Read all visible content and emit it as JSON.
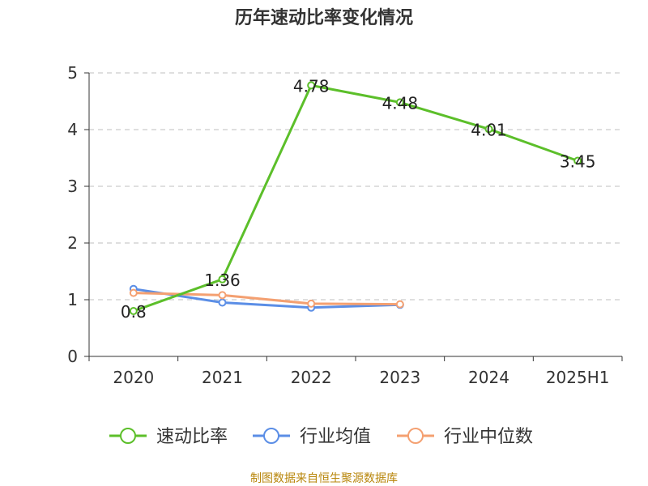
{
  "title": "历年速动比率变化情况",
  "source": "制图数据来自恒生聚源数据库",
  "chart_data": {
    "type": "line",
    "title": "历年速动比率变化情况",
    "categories": [
      "2020",
      "2021",
      "2022",
      "2023",
      "2024",
      "2025H1"
    ],
    "ylim": [
      0,
      5
    ],
    "yticks": [
      0,
      1,
      2,
      3,
      4,
      5
    ],
    "grid": true,
    "legend_position": "bottom",
    "series": [
      {
        "name": "速动比率",
        "color": "#5cbf2a",
        "values": [
          0.8,
          1.36,
          4.78,
          4.48,
          4.01,
          3.45
        ],
        "labels": [
          "0.8",
          "1.36",
          "4.78",
          "4.48",
          "4.01",
          "3.45"
        ]
      },
      {
        "name": "行业均值",
        "color": "#5b8ee6",
        "values": [
          1.19,
          0.95,
          0.86,
          0.91,
          null,
          null
        ]
      },
      {
        "name": "行业中位数",
        "color": "#f4a071",
        "values": [
          1.12,
          1.08,
          0.93,
          0.92,
          null,
          null
        ]
      }
    ]
  }
}
